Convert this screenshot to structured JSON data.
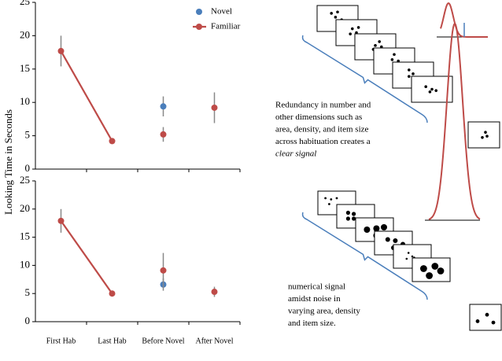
{
  "chart_data": [
    {
      "type": "line",
      "ylabel": "Looking Time in Seconds",
      "categories": [
        null,
        null,
        null,
        null
      ],
      "ylim": [
        0,
        25
      ],
      "yticks": [
        0,
        5,
        10,
        15,
        20,
        25
      ],
      "legend": true,
      "series": [
        {
          "name": "Novel",
          "color": "#4a7ebb",
          "values": [
            null,
            null,
            9.4,
            null
          ],
          "errors": [
            null,
            null,
            1.5,
            null
          ]
        },
        {
          "name": "Familiar",
          "color": "#be4b48",
          "values": [
            17.7,
            4.2,
            5.2,
            9.2
          ],
          "errors": [
            2.3,
            0.3,
            1.1,
            2.3
          ]
        }
      ]
    },
    {
      "type": "line",
      "categories": [
        "First Hab",
        "Last Hab",
        "Before Novel",
        "After Novel"
      ],
      "ylim": [
        0,
        25
      ],
      "yticks": [
        0,
        5,
        10,
        15,
        20,
        25
      ],
      "legend": false,
      "series": [
        {
          "name": "Novel",
          "color": "#4a7ebb",
          "values": [
            null,
            null,
            6.6,
            null
          ],
          "errors": [
            null,
            null,
            1.1,
            null
          ]
        },
        {
          "name": "Familiar",
          "color": "#be4b48",
          "values": [
            17.9,
            5.0,
            9.1,
            5.3
          ],
          "errors": [
            2.1,
            0.5,
            3.1,
            0.9
          ]
        }
      ]
    }
  ],
  "diagrams": [
    {
      "caption_lines": [
        "Redundancy in number and",
        "other dimensions such as",
        "area, density, and item size",
        "across habituation creates a",
        "clear signal"
      ]
    },
    {
      "caption_lines": [
        "numerical signal",
        "amidst noise in",
        "varying area, density",
        "and item size."
      ]
    }
  ]
}
